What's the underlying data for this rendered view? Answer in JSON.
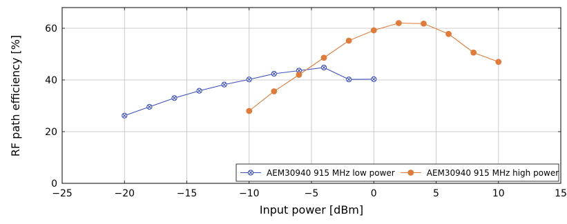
{
  "chart_data": {
    "type": "line",
    "title": "",
    "xlabel": "Input power [dBm]",
    "ylabel": "RF path efficiency [%]",
    "xlim": [
      -25,
      15
    ],
    "ylim": [
      0,
      68
    ],
    "xticks": [
      -25,
      -20,
      -15,
      -10,
      -5,
      0,
      5,
      10,
      15
    ],
    "yticks": [
      0,
      20,
      40,
      60
    ],
    "xtick_labels": [
      "−25",
      "−20",
      "−15",
      "−10",
      "−5",
      "0",
      "5",
      "10",
      "15"
    ],
    "ytick_labels": [
      "0",
      "20",
      "40",
      "60"
    ],
    "grid": true,
    "legend": {
      "placement": "bottom-right",
      "columns": 2
    },
    "series": [
      {
        "name": "AEM30940 915 MHz low power",
        "color": "#3b4fc0",
        "marker": "circle-x",
        "x": [
          -20,
          -18,
          -16,
          -14,
          -12,
          -10,
          -8,
          -6,
          -4,
          -2,
          0
        ],
        "y": [
          26.2,
          29.6,
          33.0,
          35.8,
          38.2,
          40.2,
          42.4,
          43.6,
          44.8,
          40.2,
          40.3
        ]
      },
      {
        "name": "AEM30940 915 MHz high power",
        "color": "#e07b39",
        "marker": "filled-circle",
        "x": [
          -10,
          -8,
          -6,
          -4,
          -2,
          0,
          2,
          4,
          6,
          8,
          10
        ],
        "y": [
          28.0,
          35.6,
          42.0,
          48.6,
          55.2,
          59.2,
          62.0,
          61.8,
          57.8,
          50.6,
          47.0
        ]
      }
    ]
  }
}
